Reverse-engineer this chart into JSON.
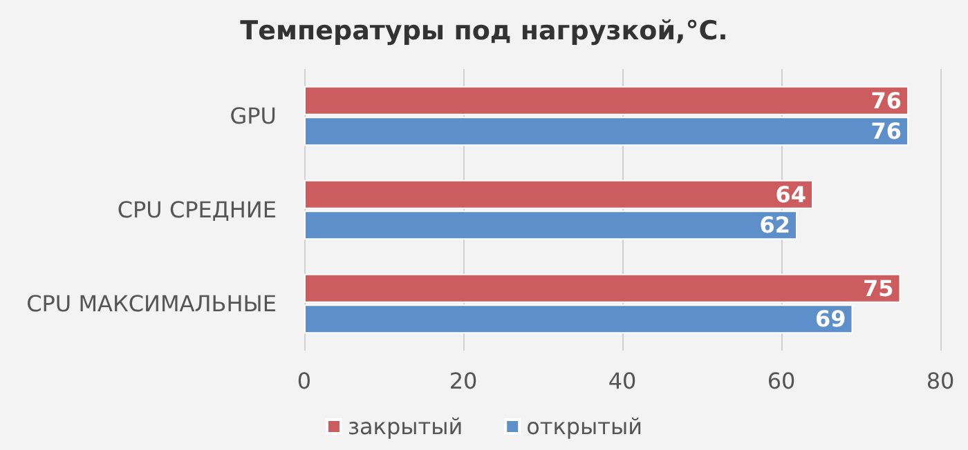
{
  "chart_data": {
    "type": "bar",
    "orientation": "horizontal",
    "title": "Температуры под нагрузкой,°С.",
    "categories": [
      "GPU",
      "CPU СРЕДНИЕ",
      "CPU МАКСИМАЛЬНЫЕ"
    ],
    "series": [
      {
        "name": "закрытый",
        "color": "#cd5c5e",
        "values": [
          76,
          64,
          75
        ]
      },
      {
        "name": "открытый",
        "color": "#5d8fcb",
        "values": [
          76,
          62,
          69
        ]
      }
    ],
    "xlim": [
      0,
      80
    ],
    "xticks": [
      0,
      20,
      40,
      60,
      80
    ],
    "grid": "x",
    "legend": "bottom",
    "data_labels": true
  }
}
